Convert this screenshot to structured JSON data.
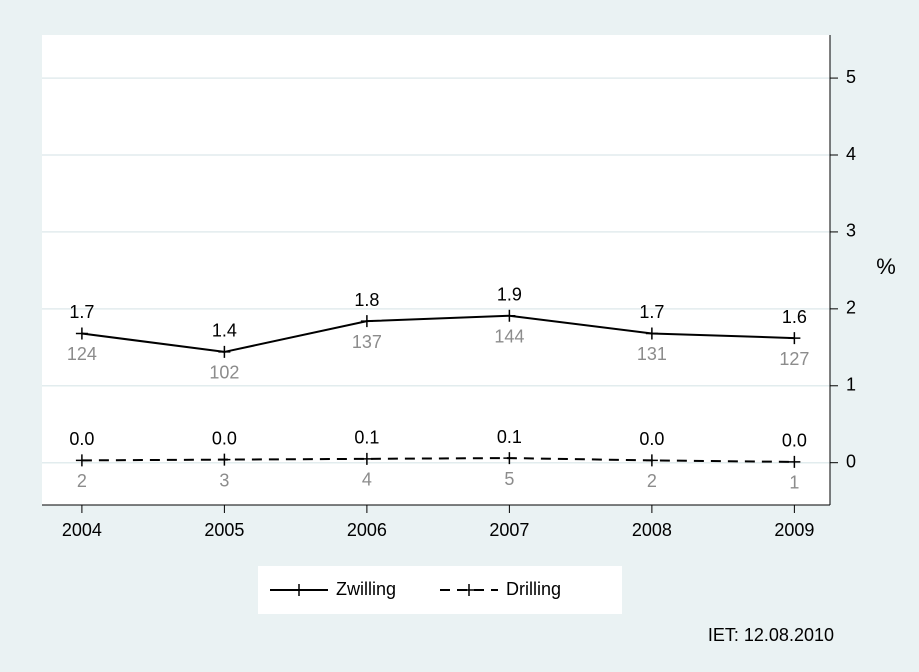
{
  "chart_data": {
    "type": "line",
    "x": [
      2004,
      2005,
      2006,
      2007,
      2008,
      2009
    ],
    "xlim": [
      2003.72,
      2009.25
    ],
    "xticks": [
      2004,
      2005,
      2006,
      2007,
      2008,
      2009
    ],
    "ylim": [
      -0.55,
      5.56
    ],
    "yticks": [
      0,
      1,
      2,
      3,
      4,
      5
    ],
    "y_axis_label": "%",
    "y_axis_side": "right",
    "grid": true,
    "series": [
      {
        "name": "Zwilling",
        "color": "#000000",
        "style": "solid",
        "values": [
          1.68,
          1.44,
          1.84,
          1.91,
          1.68,
          1.62
        ],
        "value_labels": [
          "1.7",
          "1.4",
          "1.8",
          "1.9",
          "1.7",
          "1.6"
        ],
        "counts": [
          124,
          102,
          137,
          144,
          131,
          127
        ]
      },
      {
        "name": "Drilling",
        "color": "#000000",
        "style": "dashed",
        "values": [
          0.03,
          0.04,
          0.05,
          0.06,
          0.03,
          0.01
        ],
        "value_labels": [
          "0.0",
          "0.0",
          "0.1",
          "0.1",
          "0.0",
          "0.0"
        ],
        "counts": [
          2,
          3,
          4,
          5,
          2,
          1
        ]
      }
    ],
    "note": "IET: 12.08.2010"
  }
}
